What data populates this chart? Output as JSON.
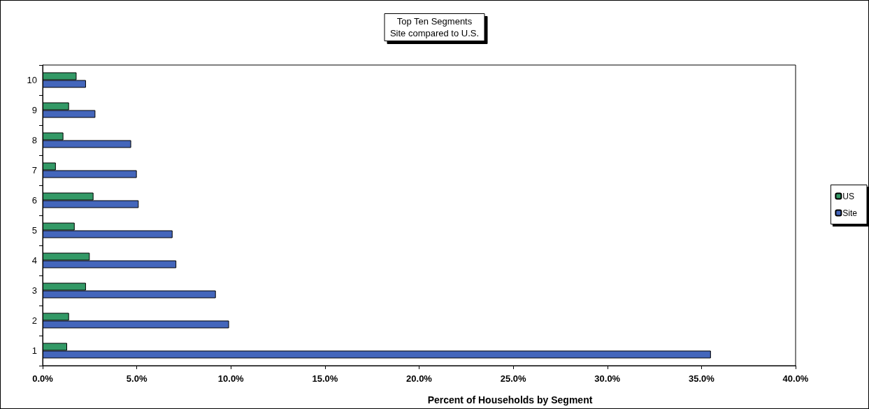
{
  "chart_data": {
    "type": "bar",
    "orientation": "horizontal",
    "title": "Top Ten Segments\nSite compared to U.S.",
    "xlabel": "Percent of Households by Segment",
    "categories": [
      "10",
      "9",
      "8",
      "7",
      "6",
      "5",
      "4",
      "3",
      "2",
      "1"
    ],
    "series": [
      {
        "name": "US",
        "color": "#339966",
        "values": [
          1.8,
          1.4,
          1.1,
          0.7,
          2.7,
          1.7,
          2.5,
          2.3,
          1.4,
          1.3
        ]
      },
      {
        "name": "Site",
        "color": "#4466bb",
        "values": [
          2.3,
          2.8,
          4.7,
          5.0,
          5.1,
          6.9,
          7.1,
          9.2,
          9.9,
          35.5
        ]
      }
    ],
    "xlim": [
      0,
      40
    ],
    "xticks": [
      {
        "value": 0,
        "label": "0.0%"
      },
      {
        "value": 5,
        "label": "5.0%"
      },
      {
        "value": 10,
        "label": "10.0%"
      },
      {
        "value": 15,
        "label": "15.0%"
      },
      {
        "value": 20,
        "label": "20.0%"
      },
      {
        "value": 25,
        "label": "25.0%"
      },
      {
        "value": 30,
        "label": "30.0%"
      },
      {
        "value": 35,
        "label": "35.0%"
      },
      {
        "value": 40,
        "label": "40.0%"
      }
    ],
    "grid": false,
    "legend": "right"
  }
}
